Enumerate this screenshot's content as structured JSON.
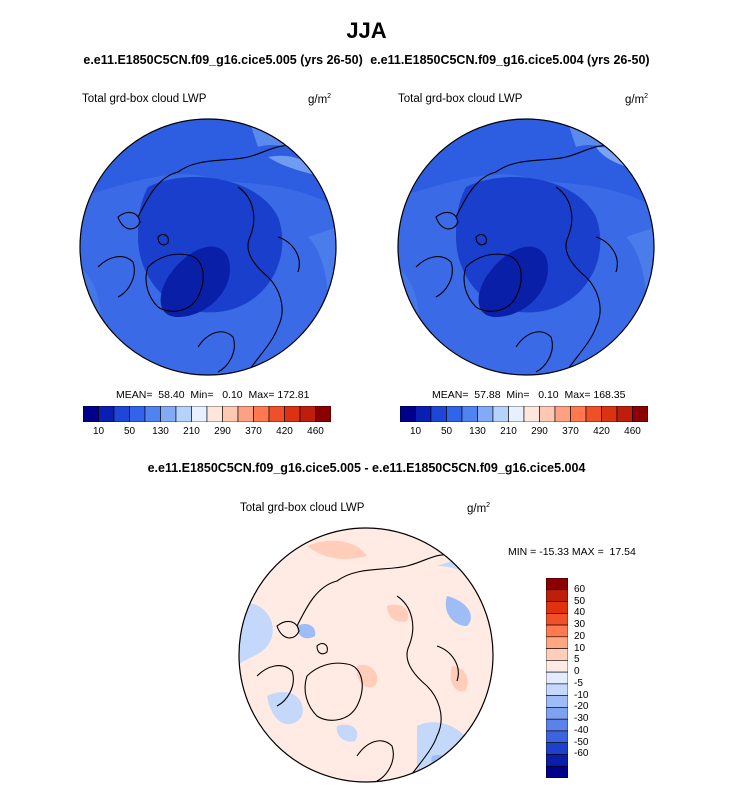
{
  "season": "JJA",
  "case_titles": {
    "left": "e.e11.E1850C5CN.f09_g16.cice5.005 (yrs 26-50)",
    "right": "e.e11.E1850C5CN.f09_g16.cice5.004 (yrs 26-50)"
  },
  "diff_title": "e.e11.E1850C5CN.f09_g16.cice5.005 - e.e11.E1850C5CN.f09_g16.cice5.004",
  "panels": [
    {
      "variable": "Total grd-box cloud LWP",
      "units": "g/m",
      "units_sup": "2",
      "stats": "MEAN=  58.40  Min=   0.10  Max= 172.81"
    },
    {
      "variable": "Total grd-box cloud LWP",
      "units": "g/m",
      "units_sup": "2",
      "stats": "MEAN=  57.88  Min=   0.10  Max= 168.35"
    }
  ],
  "diff_panel": {
    "variable": "Total grd-box cloud LWP",
    "units": "g/m",
    "units_sup": "2",
    "stats": "MIN = -15.33 MAX =  17.54"
  },
  "colorbar": {
    "colors": [
      "#00008b",
      "#0a1eb4",
      "#1e46d7",
      "#3264eb",
      "#5082f0",
      "#82aaf5",
      "#b4d2fa",
      "#e6f0ff",
      "#ffe6dc",
      "#ffc8b4",
      "#ffa082",
      "#ff7850",
      "#f05028",
      "#dc3214",
      "#be1e0a",
      "#8b0000"
    ],
    "labels": [
      "10",
      "50",
      "130",
      "210",
      "290",
      "370",
      "420",
      "460"
    ]
  },
  "diff_colorbar": {
    "colors": [
      "#8b0000",
      "#bf1e0a",
      "#e0320f",
      "#f25028",
      "#ff7a50",
      "#ffa682",
      "#ffcdb9",
      "#ffebe3",
      "#e3ecff",
      "#c3d8fa",
      "#9ebcf5",
      "#7ea2ef",
      "#5a82ea",
      "#3c64e0",
      "#1e40cd",
      "#0a1eaa",
      "#00008b"
    ],
    "labels": [
      "60",
      "50",
      "40",
      "30",
      "20",
      "10",
      "5",
      "0",
      "-5",
      "-10",
      "-20",
      "-30",
      "-40",
      "-50",
      "-60"
    ]
  }
}
